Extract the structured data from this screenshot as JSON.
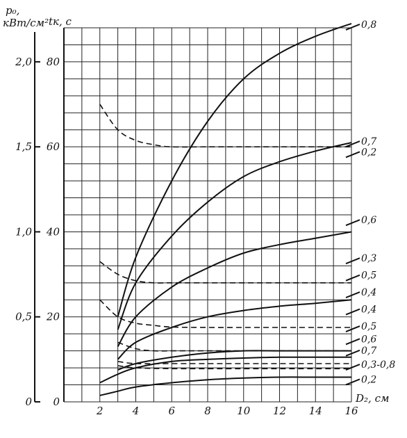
{
  "chart_data": {
    "type": "line",
    "x_axis": {
      "label": "D₂, см",
      "range": [
        0,
        16
      ],
      "ticks": [
        2,
        4,
        6,
        8,
        10,
        12,
        14,
        16
      ]
    },
    "y_axis_left_outer": {
      "label_line1": "p₀,",
      "label_line2": "кВт/см²",
      "range": [
        0,
        2.2
      ],
      "ticks": [
        "0",
        "0,5",
        "1,0",
        "1,5",
        "2,0"
      ],
      "tick_values": [
        0,
        0.5,
        1.0,
        1.5,
        2.0
      ]
    },
    "y_axis_left_inner": {
      "label": "tк, с",
      "range": [
        0,
        88
      ],
      "ticks": [
        0,
        20,
        40,
        60,
        80
      ]
    },
    "grid": true,
    "series": [
      {
        "label": "0,8",
        "style": "solid",
        "x": [
          3,
          4,
          6,
          8,
          10,
          12,
          14,
          16
        ],
        "y": [
          20,
          34,
          52,
          66,
          76,
          82,
          86,
          89
        ]
      },
      {
        "label": "0,7",
        "style": "solid",
        "x": [
          3,
          4,
          6,
          8,
          10,
          12,
          14,
          16
        ],
        "y": [
          17,
          28,
          39,
          47,
          53,
          56.5,
          59,
          61
        ]
      },
      {
        "label": "0,6",
        "style": "solid",
        "x": [
          3,
          4,
          6,
          8,
          10,
          12,
          14,
          16
        ],
        "y": [
          13,
          20,
          27,
          31.5,
          35,
          37,
          38.5,
          40
        ]
      },
      {
        "label": "0,5",
        "style": "solid",
        "x": [
          3,
          4,
          6,
          8,
          10,
          12,
          14,
          16
        ],
        "y": [
          10,
          14,
          17.5,
          20,
          21.5,
          22.5,
          23.2,
          24
        ]
      },
      {
        "label": "0,4",
        "style": "solid",
        "x": [
          3,
          4,
          6,
          8,
          10,
          12,
          14,
          16
        ],
        "y": [
          7.5,
          9,
          10.5,
          11.5,
          12,
          12,
          12,
          12
        ]
      },
      {
        "label": "0,3-0,8",
        "style": "solid",
        "x": [
          2,
          3,
          4,
          6,
          8,
          10,
          12,
          14,
          16
        ],
        "y": [
          4.5,
          6.5,
          8,
          9.5,
          10,
          10.3,
          10.5,
          10.5,
          10.5
        ]
      },
      {
        "label": "0,2",
        "style": "solid",
        "x": [
          2,
          3,
          4,
          6,
          8,
          10,
          12,
          14,
          16
        ],
        "y": [
          1.5,
          2.5,
          3.5,
          4.5,
          5.2,
          5.6,
          5.8,
          5.8,
          5.8
        ]
      },
      {
        "label": "0,2",
        "style": "dashed",
        "x": [
          2,
          3,
          4,
          5,
          6,
          8,
          10,
          12,
          14,
          16
        ],
        "y": [
          70,
          64,
          61.5,
          60.5,
          60,
          60,
          60,
          60,
          60,
          60
        ]
      },
      {
        "label": "0,3",
        "style": "dashed",
        "x": [
          2,
          3,
          4,
          5,
          6,
          8,
          10,
          12,
          14,
          16
        ],
        "y": [
          33,
          30,
          28.5,
          28,
          28,
          28,
          28,
          28,
          28,
          28
        ]
      },
      {
        "label": "0,4",
        "style": "dashed",
        "x": [
          2,
          3,
          4,
          5,
          6,
          8,
          10,
          12,
          14,
          16
        ],
        "y": [
          24,
          20,
          18.5,
          18,
          17.6,
          17.5,
          17.5,
          17.5,
          17.5,
          17.5
        ]
      },
      {
        "label": "0,5",
        "style": "dashed",
        "x": [
          3,
          4,
          5,
          6,
          8,
          10,
          12,
          14,
          16
        ],
        "y": [
          14,
          12.5,
          12,
          12,
          12,
          12,
          12,
          12,
          12
        ]
      },
      {
        "label": "0,6",
        "style": "dashed",
        "x": [
          3,
          4,
          6,
          8,
          10,
          12,
          14,
          16
        ],
        "y": [
          9.5,
          9,
          9,
          9,
          9,
          9,
          9,
          9
        ]
      },
      {
        "label": "0,7",
        "style": "dashed",
        "x": [
          3,
          4,
          6,
          8,
          10,
          12,
          14,
          16
        ],
        "y": [
          8.5,
          8,
          7.8,
          7.8,
          7.8,
          7.8,
          7.8,
          7.8
        ]
      }
    ],
    "right_labels": [
      {
        "text": "0,8",
        "y": 88.5
      },
      {
        "text": "0,7",
        "y": 61
      },
      {
        "text": "0,2",
        "y": 58.5
      },
      {
        "text": "0,6",
        "y": 42.5
      },
      {
        "text": "0,3",
        "y": 33.5
      },
      {
        "text": "0,5",
        "y": 29.5
      },
      {
        "text": "0,4",
        "y": 25.5
      },
      {
        "text": "0,4",
        "y": 21.5
      },
      {
        "text": "0,5",
        "y": 17.5
      },
      {
        "text": "0,6",
        "y": 14.5
      },
      {
        "text": "0,7",
        "y": 11.8
      },
      {
        "text": "0,3-0,8",
        "y": 8.5
      },
      {
        "text": "0,2",
        "y": 5
      }
    ]
  }
}
